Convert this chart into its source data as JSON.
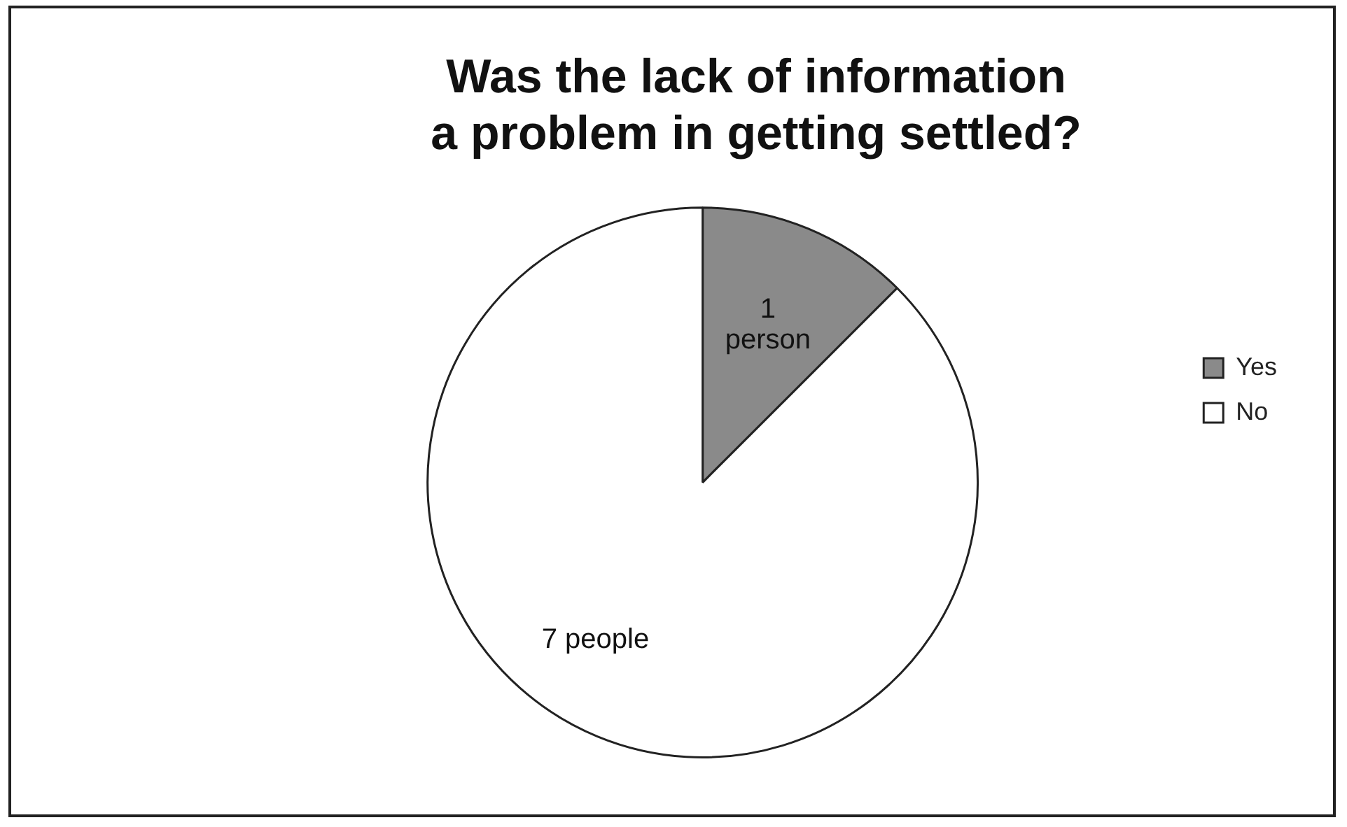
{
  "chart_data": {
    "type": "pie",
    "title": "Was the lack of information a problem in getting settled?",
    "categories": [
      "Yes",
      "No"
    ],
    "values": [
      1,
      7
    ],
    "colors": [
      "#8a8a8a",
      "#ffffff"
    ],
    "value_labels": [
      "1 person",
      "7 people"
    ],
    "legend": "right"
  }
}
